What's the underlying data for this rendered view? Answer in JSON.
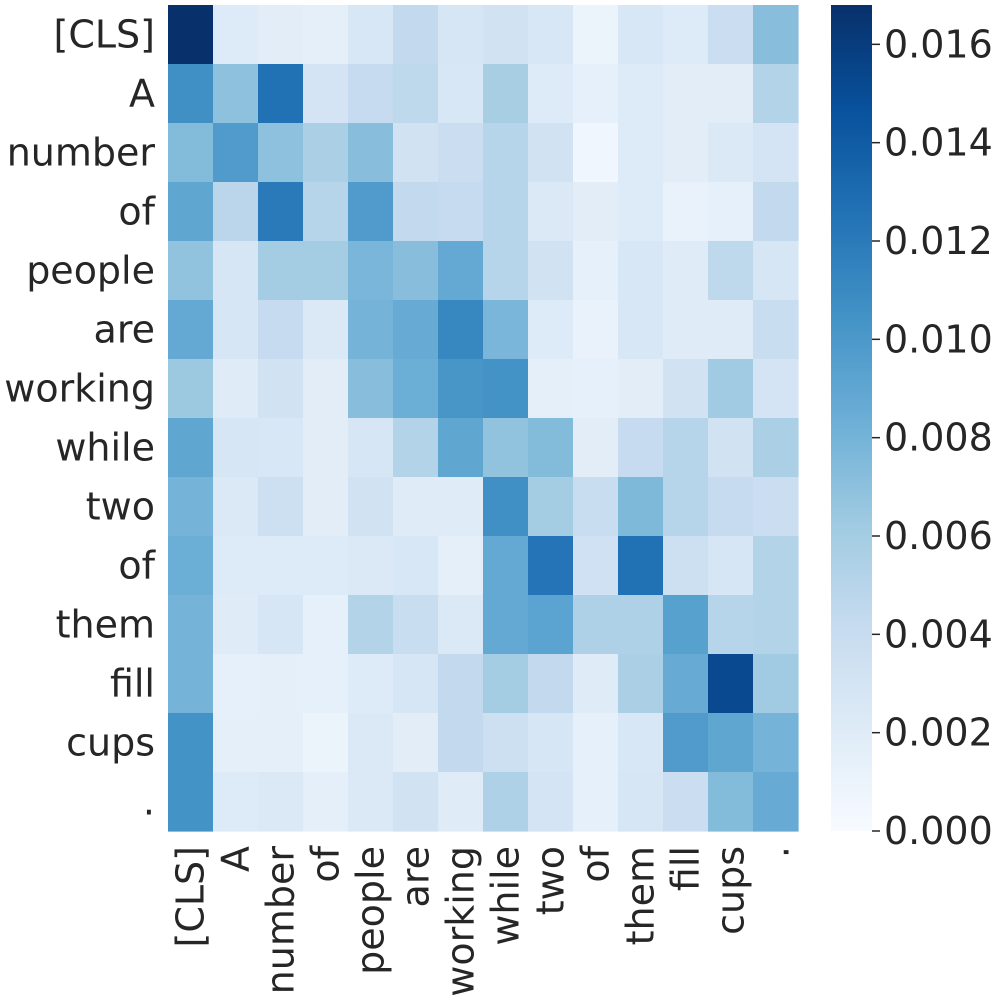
{
  "chart_data": {
    "type": "heatmap",
    "title": "",
    "xlabel": "",
    "ylabel": "",
    "colormap": "Blues",
    "colorscale": {
      "min": 0.0,
      "max": 0.0168
    },
    "rows": [
      "[CLS]",
      "A",
      "number",
      "of",
      "people",
      "are",
      "working",
      "while",
      "two",
      "of",
      "them",
      "fill",
      "cups",
      "."
    ],
    "cols": [
      "[CLS]",
      "A",
      "number",
      "of",
      "people",
      "are",
      "working",
      "while",
      "two",
      "of",
      "them",
      "fill",
      "cups",
      "."
    ],
    "values": [
      [
        0.0168,
        0.0022,
        0.0018,
        0.0016,
        0.0026,
        0.0044,
        0.0028,
        0.0032,
        0.0026,
        0.001,
        0.0026,
        0.0022,
        0.0038,
        0.0072
      ],
      [
        0.0106,
        0.007,
        0.0126,
        0.003,
        0.0042,
        0.0046,
        0.0026,
        0.0058,
        0.0022,
        0.0014,
        0.0022,
        0.0018,
        0.0018,
        0.0052
      ],
      [
        0.0074,
        0.0098,
        0.007,
        0.0056,
        0.0072,
        0.0032,
        0.0038,
        0.005,
        0.0032,
        0.0006,
        0.0022,
        0.0018,
        0.0024,
        0.003
      ],
      [
        0.009,
        0.0048,
        0.012,
        0.005,
        0.0098,
        0.0044,
        0.0042,
        0.005,
        0.0024,
        0.0018,
        0.0022,
        0.0012,
        0.0014,
        0.0044
      ],
      [
        0.0068,
        0.0028,
        0.006,
        0.006,
        0.0078,
        0.0072,
        0.0088,
        0.005,
        0.0032,
        0.0014,
        0.0026,
        0.002,
        0.0046,
        0.0028
      ],
      [
        0.0088,
        0.0028,
        0.0042,
        0.0024,
        0.008,
        0.0086,
        0.0112,
        0.0078,
        0.0022,
        0.0012,
        0.0026,
        0.002,
        0.002,
        0.004
      ],
      [
        0.0064,
        0.002,
        0.0032,
        0.0018,
        0.0072,
        0.0084,
        0.0102,
        0.0104,
        0.0016,
        0.0014,
        0.0018,
        0.0032,
        0.0062,
        0.003
      ],
      [
        0.009,
        0.0028,
        0.0026,
        0.0018,
        0.0028,
        0.0052,
        0.009,
        0.0068,
        0.0074,
        0.0018,
        0.0042,
        0.005,
        0.0032,
        0.0056
      ],
      [
        0.008,
        0.0024,
        0.0036,
        0.0018,
        0.0032,
        0.002,
        0.002,
        0.0106,
        0.006,
        0.004,
        0.0076,
        0.005,
        0.0042,
        0.0038
      ],
      [
        0.0084,
        0.0022,
        0.0022,
        0.0022,
        0.0024,
        0.0026,
        0.0016,
        0.0088,
        0.0124,
        0.0034,
        0.0126,
        0.0036,
        0.0028,
        0.0052
      ],
      [
        0.008,
        0.002,
        0.0028,
        0.0014,
        0.0052,
        0.004,
        0.0024,
        0.0088,
        0.0092,
        0.0054,
        0.0054,
        0.0094,
        0.005,
        0.0052
      ],
      [
        0.008,
        0.0014,
        0.0016,
        0.0014,
        0.0022,
        0.0028,
        0.0044,
        0.006,
        0.0044,
        0.002,
        0.0056,
        0.0086,
        0.0152,
        0.0062
      ],
      [
        0.0104,
        0.0016,
        0.0016,
        0.001,
        0.0024,
        0.0018,
        0.0044,
        0.0036,
        0.0028,
        0.0014,
        0.0026,
        0.0098,
        0.009,
        0.008
      ],
      [
        0.0104,
        0.0022,
        0.0024,
        0.0016,
        0.0024,
        0.0032,
        0.002,
        0.0054,
        0.003,
        0.0014,
        0.0028,
        0.0038,
        0.0074,
        0.0086
      ]
    ],
    "colorbar_ticks": [
      "0.000",
      "0.002",
      "0.004",
      "0.006",
      "0.008",
      "0.010",
      "0.012",
      "0.014",
      "0.016"
    ],
    "grid": false,
    "legend": "colorbar-right"
  }
}
